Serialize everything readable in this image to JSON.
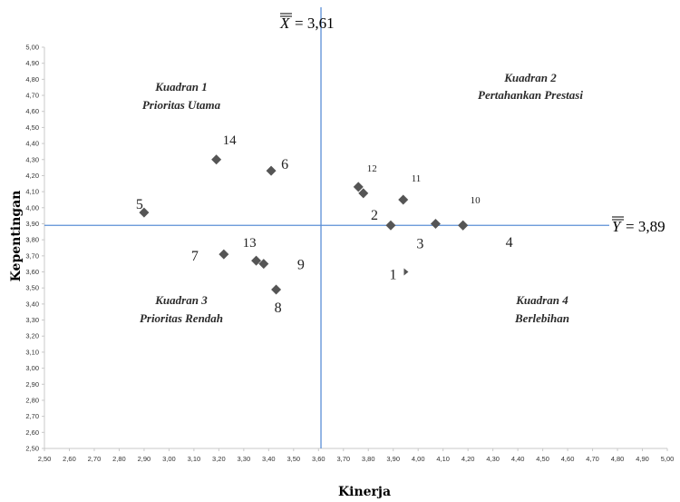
{
  "chart_data": {
    "type": "scatter",
    "xlabel": "Kinerja",
    "ylabel": "Kepentingan",
    "xlim": [
      2.5,
      5.0
    ],
    "ylim": [
      2.5,
      5.0
    ],
    "tick_step": 0.1,
    "grid": false,
    "colors": {
      "marker": "#555555",
      "refline": "#5b8fd6",
      "axis": "#c8c8c8"
    },
    "x_ticks": [
      "2,50",
      "2,60",
      "2,70",
      "2,80",
      "2,90",
      "3,00",
      "3,10",
      "3,20",
      "3,30",
      "3,40",
      "3,50",
      "3,60",
      "3,70",
      "3,80",
      "3,90",
      "4,00",
      "4,10",
      "4,20",
      "4,30",
      "4,40",
      "4,50",
      "4,60",
      "4,70",
      "4,80",
      "4,90",
      "5,00"
    ],
    "y_ticks": [
      "2,50",
      "2,60",
      "2,70",
      "2,80",
      "2,90",
      "3,00",
      "3,10",
      "3,20",
      "3,30",
      "3,40",
      "3,50",
      "3,60",
      "3,70",
      "3,80",
      "3,90",
      "4,00",
      "4,10",
      "4,20",
      "4,30",
      "4,40",
      "4,50",
      "4,60",
      "4,70",
      "4,80",
      "4,90",
      "5,00"
    ],
    "reference_lines": {
      "x": {
        "value": 3.61,
        "label": "= 3,61"
      },
      "y": {
        "value": 3.89,
        "label": "= 3,89"
      }
    },
    "quadrants": [
      {
        "number": "Kuadran 1",
        "name": "Prioritas Utama",
        "position": "top-left"
      },
      {
        "number": "Kuadran 2",
        "name": "Pertahankan Prestasi",
        "position": "top-right"
      },
      {
        "number": "Kuadran 3",
        "name": "Prioritas Rendah",
        "position": "bottom-left"
      },
      {
        "number": "Kuadran 4",
        "name": "Berlebihan",
        "position": "bottom-right"
      }
    ],
    "points": [
      {
        "label": "1",
        "x": 3.95,
        "y": 3.6
      },
      {
        "label": "2",
        "x": 3.89,
        "y": 3.89
      },
      {
        "label": "3",
        "x": 4.07,
        "y": 3.9
      },
      {
        "label": "4",
        "x": 4.18,
        "y": 3.89
      },
      {
        "label": "5",
        "x": 2.9,
        "y": 3.97
      },
      {
        "label": "6",
        "x": 3.41,
        "y": 4.23
      },
      {
        "label": "7",
        "x": 3.22,
        "y": 3.71
      },
      {
        "label": "8",
        "x": 3.43,
        "y": 3.49
      },
      {
        "label": "9",
        "x": 3.38,
        "y": 3.65
      },
      {
        "label": "10",
        "x": 4.18,
        "y": 3.89
      },
      {
        "label": "11",
        "x": 3.94,
        "y": 4.05
      },
      {
        "label": "12",
        "x": 3.78,
        "y": 4.09
      },
      {
        "label": "12",
        "x": 3.76,
        "y": 4.13
      },
      {
        "label": "13",
        "x": 3.35,
        "y": 3.67
      },
      {
        "label": "14",
        "x": 3.19,
        "y": 4.3
      }
    ]
  }
}
